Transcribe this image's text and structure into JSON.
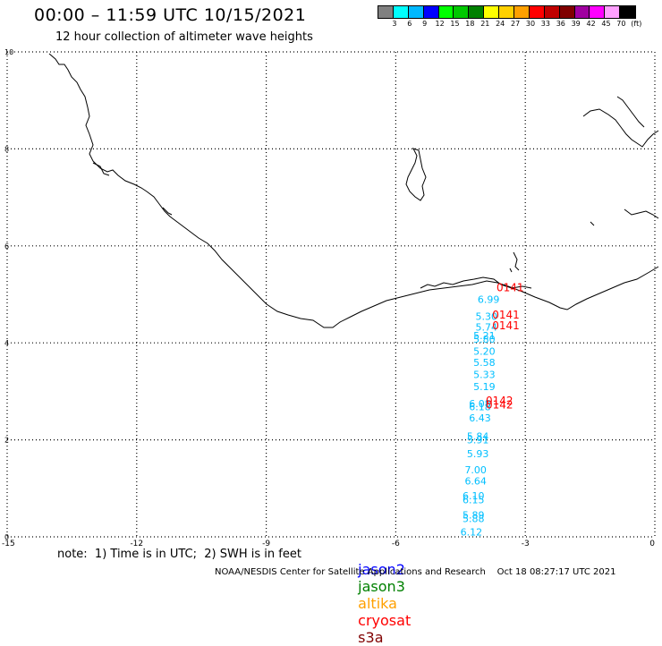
{
  "header": {
    "title": "00:00 – 11:59 UTC 10/15/2021",
    "subtitle": "12 hour collection of altimeter wave heights"
  },
  "color_scale": {
    "unit": "(ft)",
    "swatches": [
      {
        "color": "#808080"
      },
      {
        "color": "#00ffff"
      },
      {
        "color": "#00b8ff"
      },
      {
        "color": "#0000ff"
      },
      {
        "color": "#00ff00"
      },
      {
        "color": "#00c800"
      },
      {
        "color": "#008000"
      },
      {
        "color": "#ffff00"
      },
      {
        "color": "#ffd000"
      },
      {
        "color": "#ffa000"
      },
      {
        "color": "#ff0000"
      },
      {
        "color": "#c00000"
      },
      {
        "color": "#800000"
      },
      {
        "color": "#a000a0"
      },
      {
        "color": "#ff00ff"
      },
      {
        "color": "#ffa0ff"
      },
      {
        "color": "#000000"
      }
    ],
    "labels": [
      "3",
      "6",
      "9",
      "12",
      "15",
      "18",
      "21",
      "24",
      "27",
      "30",
      "33",
      "36",
      "39",
      "42",
      "45",
      "70"
    ]
  },
  "map": {
    "x_ticks": [
      "-15",
      "-12",
      "-9",
      "-6",
      "-3",
      "0"
    ],
    "y_ticks": [
      "0",
      "2",
      "4",
      "6",
      "8",
      "10"
    ],
    "xlim": [
      -15,
      0
    ],
    "ylim": [
      0,
      10
    ],
    "wave_heights": [
      {
        "lon": -3.85,
        "lat": 4.9,
        "label": "6.99"
      },
      {
        "lon": -3.9,
        "lat": 4.55,
        "label": "5.30"
      },
      {
        "lon": -3.9,
        "lat": 4.33,
        "label": "5.74"
      },
      {
        "lon": -3.95,
        "lat": 4.15,
        "label": "5.21"
      },
      {
        "lon": -3.95,
        "lat": 4.08,
        "label": "5.80"
      },
      {
        "lon": -3.95,
        "lat": 3.83,
        "label": "5.20"
      },
      {
        "lon": -3.95,
        "lat": 3.6,
        "label": "5.58"
      },
      {
        "lon": -3.95,
        "lat": 3.35,
        "label": "5.33"
      },
      {
        "lon": -3.95,
        "lat": 3.1,
        "label": "5.19"
      },
      {
        "lon": -4.05,
        "lat": 2.75,
        "label": "6.08"
      },
      {
        "lon": -4.05,
        "lat": 2.68,
        "label": "6.18"
      },
      {
        "lon": -4.05,
        "lat": 2.45,
        "label": "6.43"
      },
      {
        "lon": -4.1,
        "lat": 2.08,
        "label": "5.84"
      },
      {
        "lon": -4.1,
        "lat": 2.0,
        "label": "5.91"
      },
      {
        "lon": -4.1,
        "lat": 1.72,
        "label": "5.93"
      },
      {
        "lon": -4.15,
        "lat": 1.38,
        "label": "7.00"
      },
      {
        "lon": -4.15,
        "lat": 1.15,
        "label": "6.64"
      },
      {
        "lon": -4.2,
        "lat": 0.85,
        "label": "6.10"
      },
      {
        "lon": -4.2,
        "lat": 0.77,
        "label": "6.15"
      },
      {
        "lon": -4.2,
        "lat": 0.45,
        "label": "5.89"
      },
      {
        "lon": -4.2,
        "lat": 0.38,
        "label": "5.88"
      },
      {
        "lon": -4.25,
        "lat": 0.1,
        "label": "6.12"
      }
    ],
    "pass_labels": [
      {
        "lon": -3.35,
        "lat": 5.14,
        "label": "0141"
      },
      {
        "lon": -3.45,
        "lat": 4.58,
        "label": "0141"
      },
      {
        "lon": -3.45,
        "lat": 4.35,
        "label": "0141"
      },
      {
        "lon": -3.6,
        "lat": 2.8,
        "label": "0142"
      },
      {
        "lon": -3.6,
        "lat": 2.72,
        "label": "0142"
      }
    ],
    "colors": {
      "wave_height_text": "#00bfff",
      "pass_text": "#ff0000",
      "coast": "#000000",
      "grid": "#000000"
    }
  },
  "footer": {
    "note": "note:  1) Time is in UTC;  2) SWH is in feet",
    "satellites": [
      {
        "name": "jason2",
        "color": "#0000ff"
      },
      {
        "name": "jason3",
        "color": "#008000"
      },
      {
        "name": "altika",
        "color": "#ffa000"
      },
      {
        "name": "cryosat",
        "color": "#ff0000"
      },
      {
        "name": "s3a",
        "color": "#800000"
      }
    ],
    "credit": "NOAA/NESDIS Center for Satellite Applications and Research    Oct 18 08:27:17 UTC 2021"
  }
}
